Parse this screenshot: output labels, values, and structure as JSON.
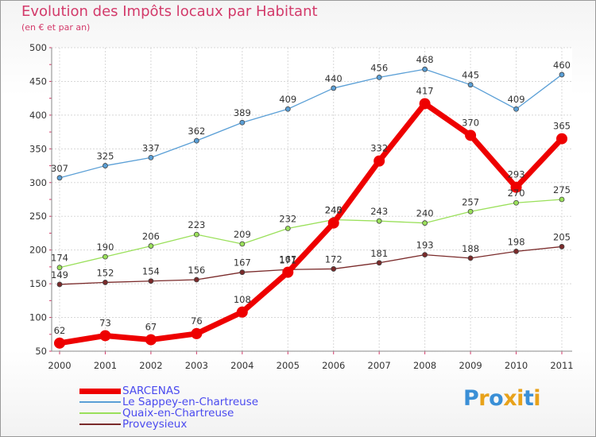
{
  "title": "Evolution des Impôts locaux par Habitant",
  "subtitle": "(en € et par an)",
  "logo": "Proxiti",
  "logo_colors": [
    "#3a8fd6",
    "#e8a21a",
    "#3a8fd6",
    "#e8a21a",
    "#e8a21a",
    "#3a8fd6",
    "#e8a21a"
  ],
  "chart_data": {
    "type": "line",
    "title": "Evolution des Impôts locaux par Habitant",
    "subtitle": "(en € et par an)",
    "x": [
      "2000",
      "2001",
      "2002",
      "2003",
      "2004",
      "2005",
      "2006",
      "2007",
      "2008",
      "2009",
      "2010",
      "2011"
    ],
    "ylim": [
      50,
      500
    ],
    "yticks": [
      50,
      100,
      150,
      200,
      250,
      300,
      350,
      400,
      450,
      500
    ],
    "grid": true,
    "legend_position": "bottom-left",
    "series": [
      {
        "name": "SARCENAS",
        "color": "#ee0000",
        "emphasis": true,
        "values": [
          62,
          73,
          67,
          76,
          108,
          167,
          240,
          332,
          417,
          370,
          293,
          365
        ]
      },
      {
        "name": "Le Sappey-en-Chartreuse",
        "color": "#5a9fd6",
        "values": [
          307,
          325,
          337,
          362,
          389,
          409,
          440,
          456,
          468,
          445,
          409,
          460
        ]
      },
      {
        "name": "Quaix-en-Chartreuse",
        "color": "#9ae05a",
        "values": [
          174,
          190,
          206,
          223,
          209,
          232,
          245,
          243,
          240,
          257,
          270,
          275
        ]
      },
      {
        "name": "Proveysieux",
        "color": "#7a2a2a",
        "values": [
          149,
          152,
          154,
          156,
          167,
          171,
          172,
          181,
          193,
          188,
          198,
          205
        ]
      }
    ]
  }
}
